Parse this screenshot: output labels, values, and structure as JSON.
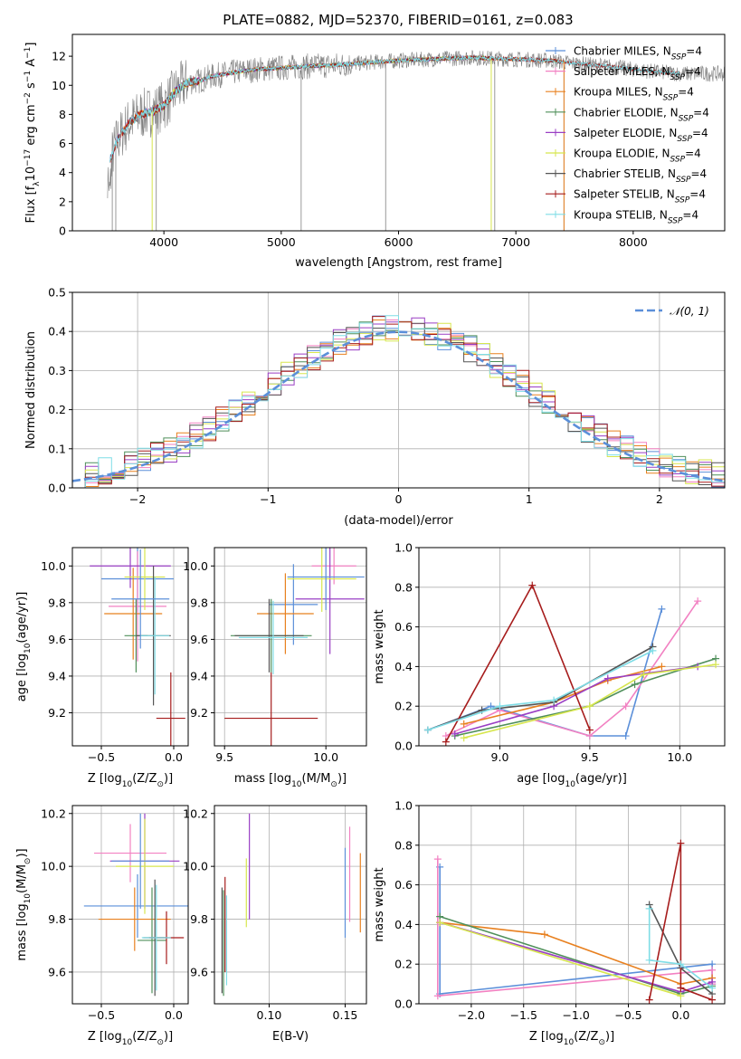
{
  "title": "PLATE=0882, MJD=52370, FIBERID=0161, z=0.083",
  "colors": {
    "chabrier_miles": "#5b8fd9",
    "salpeter_miles": "#f281c2",
    "kroupa_miles": "#e8801f",
    "chabrier_elodie": "#4f8f5a",
    "salpeter_elodie": "#9a3fc4",
    "kroupa_elodie": "#d7e64e",
    "chabrier_stelib": "#555555",
    "salpeter_stelib": "#a61c1c",
    "kroupa_stelib": "#7fdde6",
    "data": "#808080",
    "normal": "#5b8fd9",
    "grid": "#b0b0b0"
  },
  "chart_data": [
    {
      "panel": "spectrum",
      "type": "line",
      "title": "PLATE=0882, MJD=52370, FIBERID=0161, z=0.083",
      "xlabel": "wavelength [Angstrom, rest frame]",
      "ylabel": "Flux [f_λ10^-17 erg cm^-2 s^-1 A^-1]",
      "xlim": [
        3220,
        8780
      ],
      "ylim": [
        0,
        13.5
      ],
      "xticks": [
        "4000",
        "5000",
        "6000",
        "7000",
        "8000"
      ],
      "yticks": [
        "0",
        "2",
        "4",
        "6",
        "8",
        "10",
        "12"
      ],
      "legend_position": "right",
      "legend": [
        "Chabrier MILES, N_SSP=4",
        "Salpeter MILES, N_SSP=4",
        "Kroupa MILES, N_SSP=4",
        "Chabrier ELODIE, N_SSP=4",
        "Salpeter ELODIE, N_SSP=4",
        "Kroupa ELODIE, N_SSP=4",
        "Chabrier STELIB, N_SSP=4",
        "Salpeter STELIB, N_SSP=4",
        "Kroupa STELIB, N_SSP=4"
      ],
      "model_continuum": {
        "x": [
          3550,
          3600,
          3700,
          3800,
          3900,
          4000,
          4100,
          4200,
          4300,
          4400,
          4600,
          4800,
          5000,
          5200,
          5500,
          5800,
          6000,
          6300,
          6600,
          7000,
          7300,
          7500,
          7800,
          8100,
          8400
        ],
        "y": [
          5,
          6.2,
          7.4,
          8.0,
          8.2,
          8.6,
          9.6,
          10.2,
          10.3,
          10.6,
          10.9,
          11.1,
          11.2,
          11.3,
          11.4,
          11.6,
          11.7,
          11.8,
          11.9,
          11.8,
          11.7,
          11.5,
          11.3,
          11.0,
          10.8
        ]
      },
      "model_ranges": [
        {
          "series": "Chabrier MILES",
          "x": [
            3540,
            7410
          ]
        },
        {
          "series": "Salpeter MILES",
          "x": [
            3540,
            7410
          ]
        },
        {
          "series": "Kroupa MILES",
          "x": [
            3540,
            7410
          ]
        },
        {
          "series": "Chabrier ELODIE",
          "x": [
            3900,
            6790
          ]
        },
        {
          "series": "Salpeter ELODIE",
          "x": [
            3900,
            6790
          ]
        },
        {
          "series": "Kroupa ELODIE",
          "x": [
            3900,
            6790
          ]
        },
        {
          "series": "Chabrier STELIB",
          "x": [
            3540,
            8400
          ]
        },
        {
          "series": "Salpeter STELIB",
          "x": [
            3540,
            8400
          ]
        },
        {
          "series": "Kroupa STELIB",
          "x": [
            3540,
            8400
          ]
        }
      ],
      "data_range": [
        3520,
        8780
      ]
    },
    {
      "panel": "residual-histogram",
      "type": "histogram",
      "xlabel": "(data-model)/error",
      "ylabel": "Normed distribution",
      "xlim": [
        -2.5,
        2.5
      ],
      "ylim": [
        0,
        0.5
      ],
      "xticks": [
        "−2",
        "−1",
        "0",
        "1",
        "2"
      ],
      "yticks": [
        "0.0",
        "0.1",
        "0.2",
        "0.3",
        "0.4",
        "0.5"
      ],
      "legend": [
        "𝒩(0, 1)"
      ],
      "legend_position": "top-right",
      "bin_width": 0.1,
      "reference_curve": "standard normal density",
      "peak_values": {
        "max": 0.48,
        "center": 0.4
      }
    },
    {
      "panel": "Z-vs-age",
      "type": "errorbar",
      "xlabel": "Z [log10(Z/Z⊙)]",
      "ylabel": "age  [log10(age/yr)]",
      "xlim": [
        -0.7,
        0.1
      ],
      "ylim": [
        9.02,
        10.1
      ],
      "xticks": [
        "−0.5",
        "0.0"
      ],
      "yticks": [
        "9.2",
        "9.4",
        "9.6",
        "9.8",
        "10.0"
      ],
      "points": [
        {
          "x": -0.25,
          "y": 9.93,
          "xerr": 0.25,
          "yerr": 0.18
        },
        {
          "x": -0.25,
          "y": 9.78,
          "xerr": 0.2,
          "yerr": 0.3
        },
        {
          "x": -0.28,
          "y": 9.74,
          "xerr": 0.2,
          "yerr": 0.25
        },
        {
          "x": -0.26,
          "y": 9.62,
          "xerr": 0.08,
          "yerr": 0.2
        },
        {
          "x": -0.3,
          "y": 10.0,
          "xerr": 0.28,
          "yerr": 0.12
        },
        {
          "x": -0.2,
          "y": 9.94,
          "xerr": 0.14,
          "yerr": 0.18
        },
        {
          "x": -0.14,
          "y": 9.62,
          "xerr": 0.12,
          "yerr": 0.38
        },
        {
          "x": -0.02,
          "y": 9.17,
          "xerr": 0.1,
          "yerr": 0.25
        },
        {
          "x": -0.13,
          "y": 9.62,
          "xerr": 0.1,
          "yerr": 0.32
        },
        {
          "x": -0.23,
          "y": 9.82,
          "xerr": 0.2,
          "yerr": 0.27
        }
      ]
    },
    {
      "panel": "mass-vs-age",
      "type": "errorbar",
      "xlabel": "mass [log10(M/M⊙)]",
      "xlim": [
        9.45,
        10.2
      ],
      "ylim": [
        9.02,
        10.1
      ],
      "xticks": [
        "9.5",
        "10.0"
      ],
      "yticks": [
        "9.2",
        "9.4",
        "9.6",
        "9.8",
        "10.0"
      ],
      "points": [
        {
          "x": 9.84,
          "y": 9.79,
          "xerr": 0.12,
          "yerr": 0.22
        },
        {
          "x": 10.04,
          "y": 10.0,
          "xerr": 0.11,
          "yerr": 0.1
        },
        {
          "x": 9.8,
          "y": 9.74,
          "xerr": 0.14,
          "yerr": 0.22
        },
        {
          "x": 9.73,
          "y": 9.62,
          "xerr": 0.2,
          "yerr": 0.2
        },
        {
          "x": 10.02,
          "y": 9.82,
          "xerr": 0.17,
          "yerr": 0.3
        },
        {
          "x": 9.98,
          "y": 9.93,
          "xerr": 0.17,
          "yerr": 0.18
        },
        {
          "x": 9.72,
          "y": 9.62,
          "xerr": 0.17,
          "yerr": 0.2
        },
        {
          "x": 9.73,
          "y": 9.17,
          "xerr": 0.23,
          "yerr": 0.25
        },
        {
          "x": 9.74,
          "y": 9.61,
          "xerr": 0.17,
          "yerr": 0.2
        },
        {
          "x": 10.0,
          "y": 9.94,
          "xerr": 0.19,
          "yerr": 0.18
        }
      ]
    },
    {
      "panel": "age-vs-weight",
      "type": "line",
      "xlabel": "age  [log10(age/yr)]",
      "ylabel": "mass weight",
      "xlim": [
        8.55,
        10.25
      ],
      "ylim": [
        0,
        1.0
      ],
      "xticks": [
        "9.0",
        "9.5",
        "10.0"
      ],
      "yticks": [
        "0.0",
        "0.2",
        "0.4",
        "0.6",
        "0.8",
        "1.0"
      ],
      "series": [
        {
          "name": "Chabrier MILES",
          "x": [
            8.6,
            8.95,
            9.5,
            9.7,
            9.9
          ],
          "y": [
            0.08,
            0.2,
            0.05,
            0.05,
            0.69
          ]
        },
        {
          "name": "Salpeter MILES",
          "x": [
            8.7,
            9.0,
            9.5,
            9.7,
            10.1
          ],
          "y": [
            0.05,
            0.18,
            0.05,
            0.2,
            0.73
          ]
        },
        {
          "name": "Kroupa MILES",
          "x": [
            8.8,
            9.3,
            9.6,
            9.9
          ],
          "y": [
            0.11,
            0.22,
            0.33,
            0.4
          ]
        },
        {
          "name": "Chabrier ELODIE",
          "x": [
            8.75,
            9.5,
            9.75,
            10.2
          ],
          "y": [
            0.05,
            0.2,
            0.31,
            0.44
          ]
        },
        {
          "name": "Salpeter ELODIE",
          "x": [
            8.75,
            9.3,
            9.6,
            10.1
          ],
          "y": [
            0.06,
            0.2,
            0.34,
            0.4
          ]
        },
        {
          "name": "Kroupa ELODIE",
          "x": [
            8.8,
            9.5,
            9.8,
            10.2
          ],
          "y": [
            0.04,
            0.2,
            0.36,
            0.41
          ]
        },
        {
          "name": "Chabrier STELIB",
          "x": [
            8.6,
            8.9,
            9.3,
            9.85
          ],
          "y": [
            0.08,
            0.18,
            0.22,
            0.5
          ]
        },
        {
          "name": "Salpeter STELIB",
          "x": [
            8.7,
            9.18,
            9.5
          ],
          "y": [
            0.02,
            0.81,
            0.08
          ]
        },
        {
          "name": "Kroupa STELIB",
          "x": [
            8.6,
            9.0,
            9.3,
            9.85
          ],
          "y": [
            0.08,
            0.2,
            0.23,
            0.48
          ]
        }
      ]
    },
    {
      "panel": "Z-vs-mass",
      "type": "errorbar",
      "xlabel": "Z [log10(Z/Z⊙)]",
      "ylabel": "mass [log10(M/M⊙)]",
      "xlim": [
        -0.7,
        0.1
      ],
      "ylim": [
        9.48,
        10.23
      ],
      "xticks": [
        "−0.5",
        "0.0"
      ],
      "yticks": [
        "9.6",
        "9.8",
        "10.0",
        "10.2"
      ],
      "points": [
        {
          "x": -0.25,
          "y": 9.85,
          "xerr": 0.37,
          "yerr": 0.12
        },
        {
          "x": -0.3,
          "y": 10.05,
          "xerr": 0.25,
          "yerr": 0.11
        },
        {
          "x": -0.27,
          "y": 9.8,
          "xerr": 0.25,
          "yerr": 0.12
        },
        {
          "x": -0.15,
          "y": 9.72,
          "xerr": 0.1,
          "yerr": 0.2
        },
        {
          "x": -0.2,
          "y": 10.02,
          "xerr": 0.24,
          "yerr": 0.18
        },
        {
          "x": -0.2,
          "y": 10.0,
          "xerr": 0.2,
          "yerr": 0.18
        },
        {
          "x": -0.13,
          "y": 9.73,
          "xerr": 0.08,
          "yerr": 0.22
        },
        {
          "x": -0.05,
          "y": 9.73,
          "xerr": 0.12,
          "yerr": 0.1
        },
        {
          "x": -0.12,
          "y": 9.73,
          "xerr": 0.1,
          "yerr": 0.2
        },
        {
          "x": -0.23,
          "y": 10.02,
          "xerr": 0.2,
          "yerr": 0.18
        }
      ]
    },
    {
      "panel": "EBV-vs-mass",
      "type": "errorbar",
      "xlabel": "E(B-V)",
      "xlim": [
        0.064,
        0.164
      ],
      "ylim": [
        9.48,
        10.23
      ],
      "xticks": [
        "0.05",
        "0.10",
        "0.15"
      ],
      "yticks": [
        "9.6",
        "9.8",
        "10.0",
        "10.2"
      ],
      "points": [
        {
          "x": 0.15,
          "y": 9.9,
          "yerr": 0.17
        },
        {
          "x": 0.153,
          "y": 9.97,
          "yerr": 0.18
        },
        {
          "x": 0.16,
          "y": 9.9,
          "yerr": 0.15
        },
        {
          "x": 0.07,
          "y": 9.71,
          "yerr": 0.2
        },
        {
          "x": 0.087,
          "y": 10.0,
          "yerr": 0.2
        },
        {
          "x": 0.085,
          "y": 9.9,
          "yerr": 0.13
        },
        {
          "x": 0.069,
          "y": 9.72,
          "yerr": 0.2
        },
        {
          "x": 0.071,
          "y": 9.78,
          "yerr": 0.18
        },
        {
          "x": 0.072,
          "y": 9.72,
          "yerr": 0.17
        }
      ]
    },
    {
      "panel": "Z-vs-weight",
      "type": "line",
      "xlabel": "Z [log10(Z/Z⊙)]",
      "ylabel": "mass weight",
      "xlim": [
        -2.5,
        0.42
      ],
      "ylim": [
        0,
        1.0
      ],
      "xticks": [
        "−2.0",
        "−1.5",
        "−1.0",
        "−0.5",
        "0.0"
      ],
      "yticks": [
        "0.0",
        "0.2",
        "0.4",
        "0.6",
        "0.8",
        "1.0"
      ],
      "series": [
        {
          "name": "Chabrier MILES",
          "x": [
            -2.3,
            -2.3,
            0.3,
            0.3
          ],
          "y": [
            0.69,
            0.05,
            0.2,
            0.1
          ]
        },
        {
          "name": "Salpeter MILES",
          "x": [
            -2.32,
            -2.32,
            0.3,
            0.3
          ],
          "y": [
            0.73,
            0.04,
            0.17,
            0.1
          ]
        },
        {
          "name": "Kroupa MILES",
          "x": [
            -2.3,
            -1.3,
            0.0,
            0.3
          ],
          "y": [
            0.41,
            0.35,
            0.1,
            0.13
          ]
        },
        {
          "name": "Chabrier ELODIE",
          "x": [
            -2.3,
            0.0,
            0.3
          ],
          "y": [
            0.44,
            0.05,
            0.09
          ]
        },
        {
          "name": "Salpeter ELODIE",
          "x": [
            -2.3,
            0.0,
            0.3
          ],
          "y": [
            0.41,
            0.06,
            0.11
          ]
        },
        {
          "name": "Kroupa ELODIE",
          "x": [
            -2.3,
            0.0
          ],
          "y": [
            0.41,
            0.04
          ]
        },
        {
          "name": "Chabrier STELIB",
          "x": [
            -0.3,
            0.0,
            0.3
          ],
          "y": [
            0.5,
            0.18,
            0.05
          ]
        },
        {
          "name": "Salpeter STELIB",
          "x": [
            -0.3,
            0.0,
            0.0,
            0.3
          ],
          "y": [
            0.02,
            0.81,
            0.08,
            0.02
          ]
        },
        {
          "name": "Kroupa STELIB",
          "x": [
            -0.3,
            -0.3,
            0.0,
            0.3
          ],
          "y": [
            0.48,
            0.22,
            0.2,
            0.08
          ]
        }
      ]
    }
  ]
}
